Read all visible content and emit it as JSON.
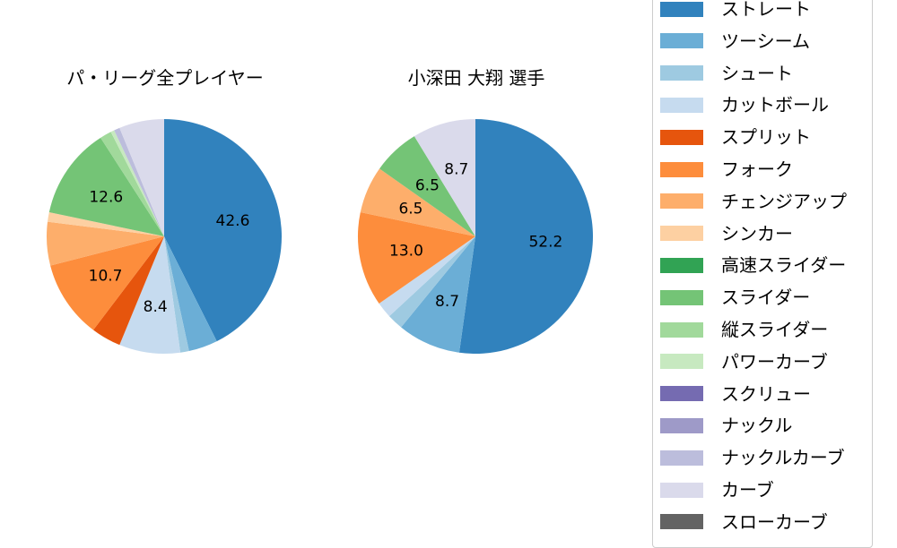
{
  "chart_data": [
    {
      "type": "pie",
      "title": "パ・リーグ全プレイヤー",
      "start_angle": 90,
      "direction": "clockwise",
      "categories": [
        "ストレート",
        "ツーシーム",
        "シュート",
        "カットボール",
        "スプリット",
        "フォーク",
        "チェンジアップ",
        "シンカー",
        "スライダー",
        "縦スライダー",
        "パワーカーブ",
        "ナックルカーブ",
        "カーブ"
      ],
      "values": [
        42.6,
        4.0,
        1.2,
        8.4,
        4.1,
        10.7,
        6.0,
        1.3,
        12.6,
        1.6,
        0.5,
        0.8,
        6.2
      ],
      "colors": [
        "#3182bd",
        "#6baed6",
        "#9ecae1",
        "#c6dbef",
        "#e6550d",
        "#fd8d3c",
        "#fdae6b",
        "#fdd0a2",
        "#74c476",
        "#a1d99b",
        "#c7e9c0",
        "#bcbddc",
        "#dadaeb"
      ],
      "labels_shown": [
        "42.6",
        "",
        "",
        "8.4",
        "",
        "10.7",
        "",
        "",
        "12.6",
        "",
        "",
        "",
        ""
      ]
    },
    {
      "type": "pie",
      "title": "小深田 大翔  選手",
      "start_angle": 90,
      "direction": "clockwise",
      "categories": [
        "ストレート",
        "ツーシーム",
        "シュート",
        "カットボール",
        "フォーク",
        "チェンジアップ",
        "スライダー",
        "カーブ"
      ],
      "values": [
        52.2,
        8.7,
        2.2,
        2.2,
        13.0,
        6.5,
        6.5,
        8.7
      ],
      "colors": [
        "#3182bd",
        "#6baed6",
        "#9ecae1",
        "#c6dbef",
        "#fd8d3c",
        "#fdae6b",
        "#74c476",
        "#dadaeb"
      ],
      "labels_shown": [
        "52.2",
        "8.7",
        "",
        "",
        "13.0",
        "6.5",
        "6.5",
        "8.7"
      ]
    }
  ],
  "titles": {
    "left": "パ・リーグ全プレイヤー",
    "right": "小深田 大翔  選手"
  },
  "legend": {
    "position": "right",
    "items": [
      {
        "label": "ストレート",
        "color": "#3182bd"
      },
      {
        "label": "ツーシーム",
        "color": "#6baed6"
      },
      {
        "label": "シュート",
        "color": "#9ecae1"
      },
      {
        "label": "カットボール",
        "color": "#c6dbef"
      },
      {
        "label": "スプリット",
        "color": "#e6550d"
      },
      {
        "label": "フォーク",
        "color": "#fd8d3c"
      },
      {
        "label": "チェンジアップ",
        "color": "#fdae6b"
      },
      {
        "label": "シンカー",
        "color": "#fdd0a2"
      },
      {
        "label": "高速スライダー",
        "color": "#31a354"
      },
      {
        "label": "スライダー",
        "color": "#74c476"
      },
      {
        "label": "縦スライダー",
        "color": "#a1d99b"
      },
      {
        "label": "パワーカーブ",
        "color": "#c7e9c0"
      },
      {
        "label": "スクリュー",
        "color": "#756bb1"
      },
      {
        "label": "ナックル",
        "color": "#9e9ac8"
      },
      {
        "label": "ナックルカーブ",
        "color": "#bcbddc"
      },
      {
        "label": "カーブ",
        "color": "#dadaeb"
      },
      {
        "label": "スローカーブ",
        "color": "#636363"
      }
    ]
  }
}
